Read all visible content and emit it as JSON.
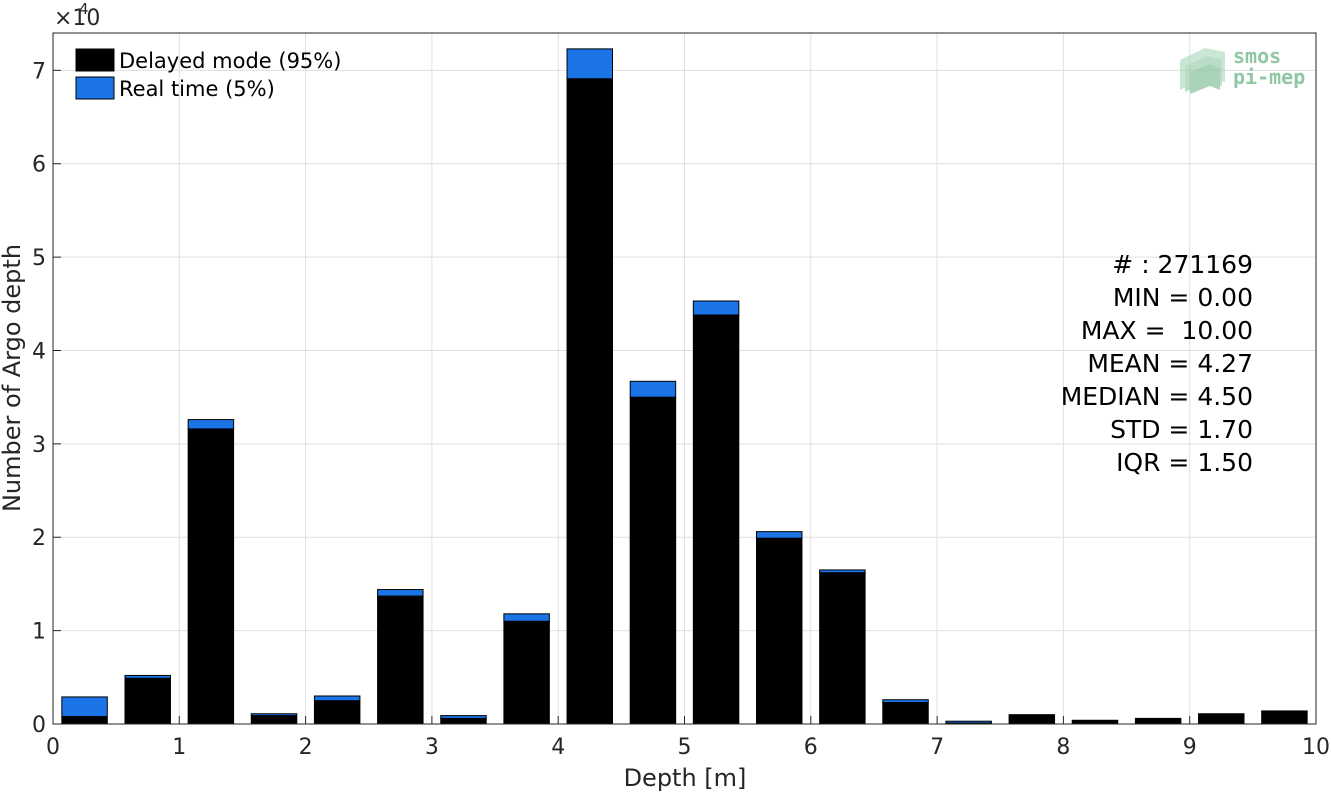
{
  "chart_data": {
    "type": "bar",
    "stacked": true,
    "xlabel": "Depth [m]",
    "ylabel": "Number of Argo depth",
    "y_multiplier": {
      "base": "×10",
      "exponent": "4"
    },
    "xlim": [
      0,
      10
    ],
    "ylim": [
      0,
      74000
    ],
    "x_ticks": [
      "0",
      "1",
      "2",
      "3",
      "4",
      "5",
      "6",
      "7",
      "8",
      "9",
      "10"
    ],
    "y_ticks": [
      "0",
      "1",
      "2",
      "3",
      "4",
      "5",
      "6",
      "7"
    ],
    "grid": true,
    "legend_position": "top-left",
    "bin_centers": [
      0.25,
      0.75,
      1.25,
      1.75,
      2.25,
      2.75,
      3.25,
      3.75,
      4.25,
      4.75,
      5.25,
      5.75,
      6.25,
      6.75,
      7.25,
      7.75,
      8.25,
      8.75,
      9.25,
      9.75
    ],
    "series": [
      {
        "name": "Delayed mode (95%)",
        "color": "#000000",
        "values": [
          800,
          4900,
          31600,
          900,
          2500,
          13700,
          600,
          11000,
          69100,
          35000,
          43800,
          19900,
          16200,
          2300,
          100,
          1000,
          300,
          600,
          1000,
          1300
        ]
      },
      {
        "name": "Real time (5%)",
        "color": "#1a74e6",
        "values": [
          2100,
          300,
          1000,
          200,
          500,
          700,
          300,
          800,
          3200,
          1700,
          1500,
          700,
          300,
          300,
          200,
          0,
          100,
          0,
          100,
          100
        ]
      }
    ],
    "annotations": [
      "# : 271169",
      "MIN = 0.00",
      "MAX =  10.00",
      "MEAN = 4.27",
      "MEDIAN = 4.50",
      "STD = 1.70",
      "IQR = 1.50"
    ]
  },
  "logo": {
    "line1": "smos",
    "line2": "pi-mep",
    "color": "#8fc7a4"
  }
}
